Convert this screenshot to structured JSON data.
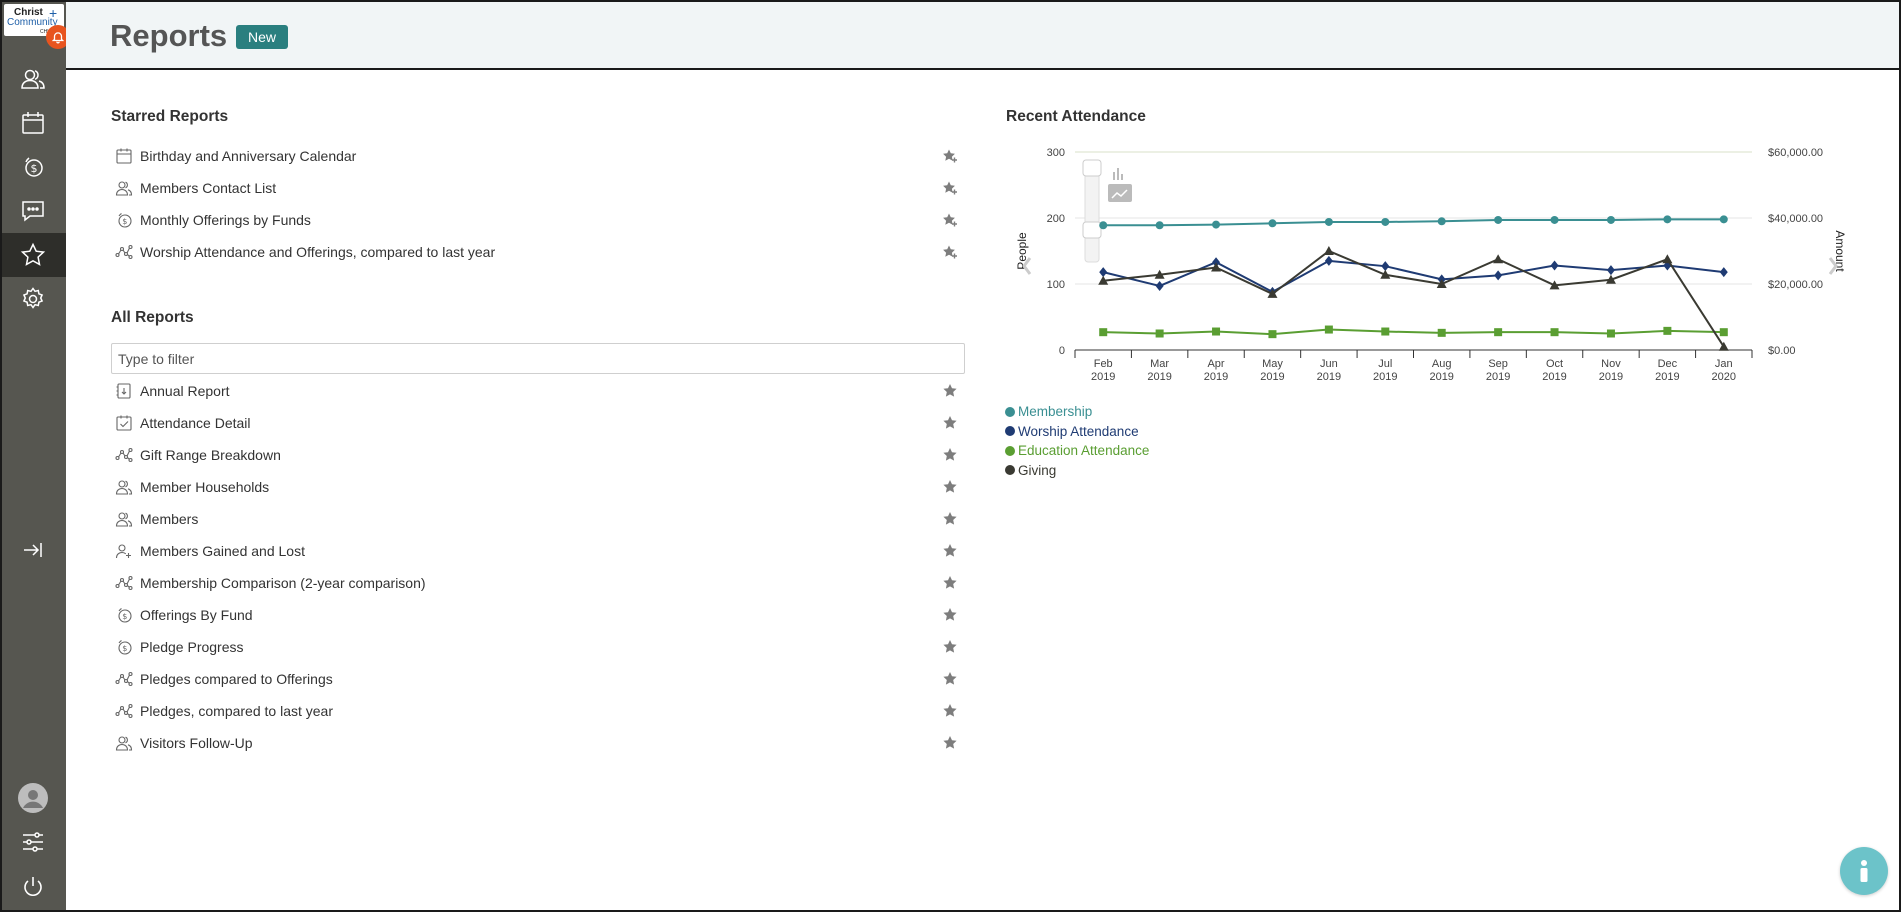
{
  "app": {
    "logo_lines": [
      "Christ",
      "Community",
      "CHURCH"
    ]
  },
  "header": {
    "title": "Reports",
    "badge": "New"
  },
  "starred": {
    "title": "Starred Reports",
    "items": [
      {
        "label": "Birthday and Anniversary Calendar",
        "icon": "calendar-icon"
      },
      {
        "label": "Members Contact List",
        "icon": "people-icon"
      },
      {
        "label": "Monthly Offerings by Funds",
        "icon": "dollar-icon"
      },
      {
        "label": "Worship Attendance and Offerings, compared to last year",
        "icon": "chart-line-icon"
      }
    ]
  },
  "all_reports": {
    "title": "All Reports",
    "filter_placeholder": "Type to filter",
    "items": [
      {
        "label": "Annual Report",
        "icon": "annual-report-icon"
      },
      {
        "label": "Attendance Detail",
        "icon": "attendance-check-icon"
      },
      {
        "label": "Gift Range Breakdown",
        "icon": "chart-line-icon"
      },
      {
        "label": "Member Households",
        "icon": "people-icon"
      },
      {
        "label": "Members",
        "icon": "people-icon"
      },
      {
        "label": "Members Gained and Lost",
        "icon": "person-plus-icon"
      },
      {
        "label": "Membership Comparison (2-year comparison)",
        "icon": "chart-line-icon"
      },
      {
        "label": "Offerings By Fund",
        "icon": "dollar-icon"
      },
      {
        "label": "Pledge Progress",
        "icon": "dollar-icon"
      },
      {
        "label": "Pledges compared to Offerings",
        "icon": "chart-line-icon"
      },
      {
        "label": "Pledges, compared to last year",
        "icon": "chart-line-icon"
      },
      {
        "label": "Visitors Follow-Up",
        "icon": "people-icon"
      }
    ]
  },
  "attendance": {
    "title": "Recent Attendance"
  },
  "colors": {
    "sidebar": "#565650",
    "accent_teal": "#2a7f7f",
    "membership": "#3a8f92",
    "worship": "#1f3b73",
    "education": "#5a9e32",
    "giving": "#3a3a32",
    "notification": "#e8541f",
    "info": "#6cc3c9"
  },
  "chart_data": {
    "type": "line",
    "title": "Recent Attendance",
    "ylabel": "People",
    "ylabel_right": "Amount",
    "ylim": [
      0,
      300
    ],
    "ylim_right": [
      0,
      60000
    ],
    "yticks": [
      "0",
      "100",
      "200",
      "300"
    ],
    "yticks_right": [
      "$0.00",
      "$20,000.00",
      "$40,000.00",
      "$60,000.00"
    ],
    "categories": [
      [
        "Feb",
        "2019"
      ],
      [
        "Mar",
        "2019"
      ],
      [
        "Apr",
        "2019"
      ],
      [
        "May",
        "2019"
      ],
      [
        "Jun",
        "2019"
      ],
      [
        "Jul",
        "2019"
      ],
      [
        "Aug",
        "2019"
      ],
      [
        "Sep",
        "2019"
      ],
      [
        "Oct",
        "2019"
      ],
      [
        "Nov",
        "2019"
      ],
      [
        "Dec",
        "2019"
      ],
      [
        "Jan",
        "2020"
      ]
    ],
    "series": [
      {
        "name": "Membership",
        "axis": "left",
        "marker": "circle",
        "color": "#3a8f92",
        "values": [
          189,
          189,
          190,
          192,
          194,
          194,
          195,
          197,
          197,
          197,
          198,
          198
        ]
      },
      {
        "name": "Worship Attendance",
        "axis": "left",
        "marker": "diamond",
        "color": "#1f3b73",
        "values": [
          118,
          97,
          133,
          88,
          135,
          127,
          107,
          113,
          128,
          121,
          128,
          118
        ]
      },
      {
        "name": "Education Attendance",
        "axis": "left",
        "marker": "square",
        "color": "#5a9e32",
        "values": [
          27,
          25,
          28,
          24,
          31,
          28,
          26,
          27,
          27,
          25,
          29,
          27
        ]
      },
      {
        "name": "Giving",
        "axis": "right",
        "marker": "triangle",
        "color": "#3a3a32",
        "values": [
          21000,
          22800,
          25000,
          17000,
          30000,
          22800,
          20000,
          27500,
          19600,
          21300,
          27500,
          1000
        ]
      }
    ],
    "legend_placement": "bottom-left",
    "grid": true
  }
}
